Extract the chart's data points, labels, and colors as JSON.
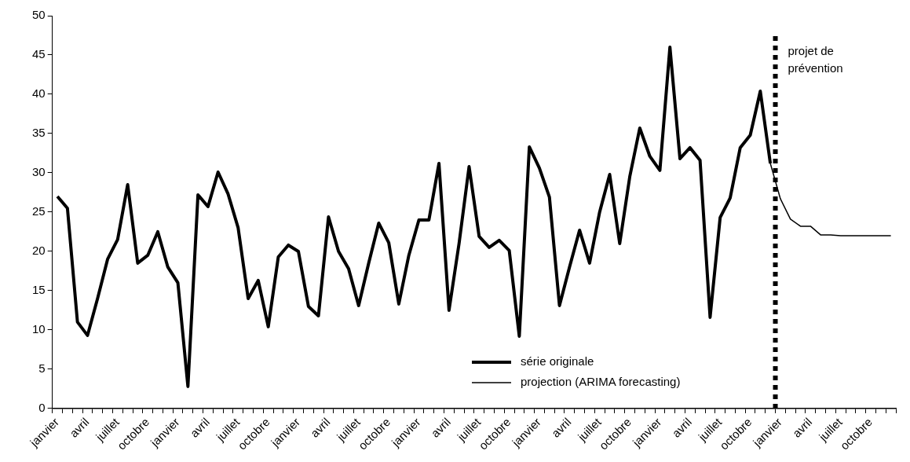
{
  "chart_data": {
    "type": "line",
    "categories": [
      "janvier",
      null,
      null,
      "avril",
      null,
      null,
      "juillet",
      null,
      null,
      "octobre",
      null,
      null,
      "janvier",
      null,
      null,
      "avril",
      null,
      null,
      "juillet",
      null,
      null,
      "octobre",
      null,
      null,
      "janvier",
      null,
      null,
      "avril",
      null,
      null,
      "juillet",
      null,
      null,
      "octobre",
      null,
      null,
      "janvier",
      null,
      null,
      "avril",
      null,
      null,
      "juillet",
      null,
      null,
      "octobre",
      null,
      null,
      "janvier",
      null,
      null,
      "avril",
      null,
      null,
      "juillet",
      null,
      null,
      "octobre",
      null,
      null,
      "janvier",
      null,
      null,
      "avril",
      null,
      null,
      "juillet",
      null,
      null,
      "octobre",
      null,
      null,
      "janvier",
      null,
      null,
      "avril",
      null,
      null,
      "juillet",
      null,
      null,
      "octobre",
      null,
      null
    ],
    "series": [
      {
        "name": "série originale",
        "color": "#000000",
        "values": [
          27,
          25.5,
          11,
          9.3,
          14,
          19,
          21.5,
          28.5,
          18.5,
          19.5,
          22.5,
          18,
          16,
          2.8,
          27.2,
          25.7,
          30.1,
          27.3,
          23,
          14,
          16.3,
          10.4,
          19.3,
          20.8,
          20,
          13,
          11.8,
          24.4,
          20,
          17.8,
          13.1,
          18.5,
          23.6,
          21.1,
          13.3,
          19.5,
          24,
          24,
          31.2,
          12.5,
          21,
          30.8,
          21.9,
          20.5,
          21.4,
          20.1,
          9.2,
          33.3,
          30.6,
          26.9,
          13.1,
          18,
          22.7,
          18.5,
          25,
          29.8,
          21,
          29.5,
          35.7,
          32.1,
          30.3,
          46,
          31.8,
          33.2,
          31.6,
          11.6,
          24.3,
          26.8,
          33.2,
          34.8,
          40.4,
          31.2,
          null,
          null,
          null,
          null,
          null,
          null,
          null,
          null,
          null,
          null,
          null,
          null
        ]
      },
      {
        "name": "projection (ARIMA forecasting)",
        "color": "#000000",
        "values": [
          null,
          null,
          null,
          null,
          null,
          null,
          null,
          null,
          null,
          null,
          null,
          null,
          null,
          null,
          null,
          null,
          null,
          null,
          null,
          null,
          null,
          null,
          null,
          null,
          null,
          null,
          null,
          null,
          null,
          null,
          null,
          null,
          null,
          null,
          null,
          null,
          null,
          null,
          null,
          null,
          null,
          null,
          null,
          null,
          null,
          null,
          null,
          null,
          null,
          null,
          null,
          null,
          null,
          null,
          null,
          null,
          null,
          null,
          null,
          null,
          null,
          null,
          null,
          null,
          null,
          null,
          null,
          null,
          null,
          null,
          null,
          31.2,
          26.7,
          24.1,
          23.2,
          23.2,
          22.1,
          22.1,
          22,
          22,
          22,
          22,
          22,
          22
        ]
      }
    ],
    "ylim": [
      0,
      50
    ],
    "yticks": [
      0,
      5,
      10,
      15,
      20,
      25,
      30,
      35,
      40,
      45,
      50
    ],
    "grid": false,
    "legend": "bottom right",
    "marker": "none",
    "line_style": "solid",
    "annotations": [
      "projet de prévention"
    ]
  }
}
